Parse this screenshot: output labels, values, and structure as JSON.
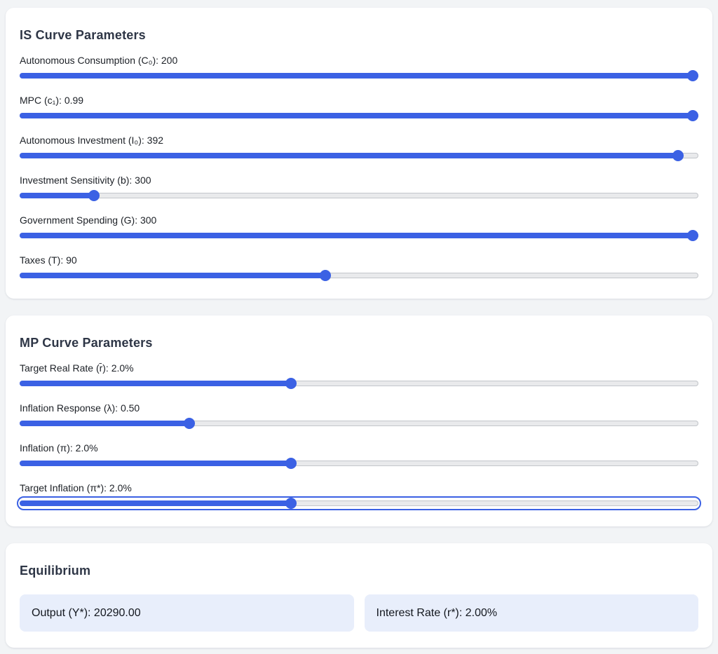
{
  "colors": {
    "accent": "#3b61e4",
    "track_gray": "#e9eaec",
    "value_box_bg": "#e8eefb",
    "page_bg": "#f2f4f6"
  },
  "is_card": {
    "title": "IS Curve Parameters",
    "sliders": [
      {
        "label": "Autonomous Consumption (C₀): 200",
        "percent": 100
      },
      {
        "label": "MPC (c₁): 0.99",
        "percent": 100
      },
      {
        "label": "Autonomous Investment (I₀): 392",
        "percent": 97
      },
      {
        "label": "Investment Sensitivity (b): 300",
        "percent": 11
      },
      {
        "label": "Government Spending (G): 300",
        "percent": 100
      },
      {
        "label": "Taxes (T): 90",
        "percent": 45
      }
    ]
  },
  "mp_card": {
    "title": "MP Curve Parameters",
    "sliders": [
      {
        "label": "Target Real Rate (r̄): 2.0%",
        "percent": 40
      },
      {
        "label": "Inflation Response (λ): 0.50",
        "percent": 25
      },
      {
        "label": "Inflation (π): 2.0%",
        "percent": 40
      },
      {
        "label": "Target Inflation (π*): 2.0%",
        "percent": 40,
        "focused": true
      }
    ]
  },
  "equilibrium_card": {
    "title": "Equilibrium",
    "output_text": "Output (Y*): 20290.00",
    "interest_text": "Interest Rate (r*): 2.00%"
  }
}
